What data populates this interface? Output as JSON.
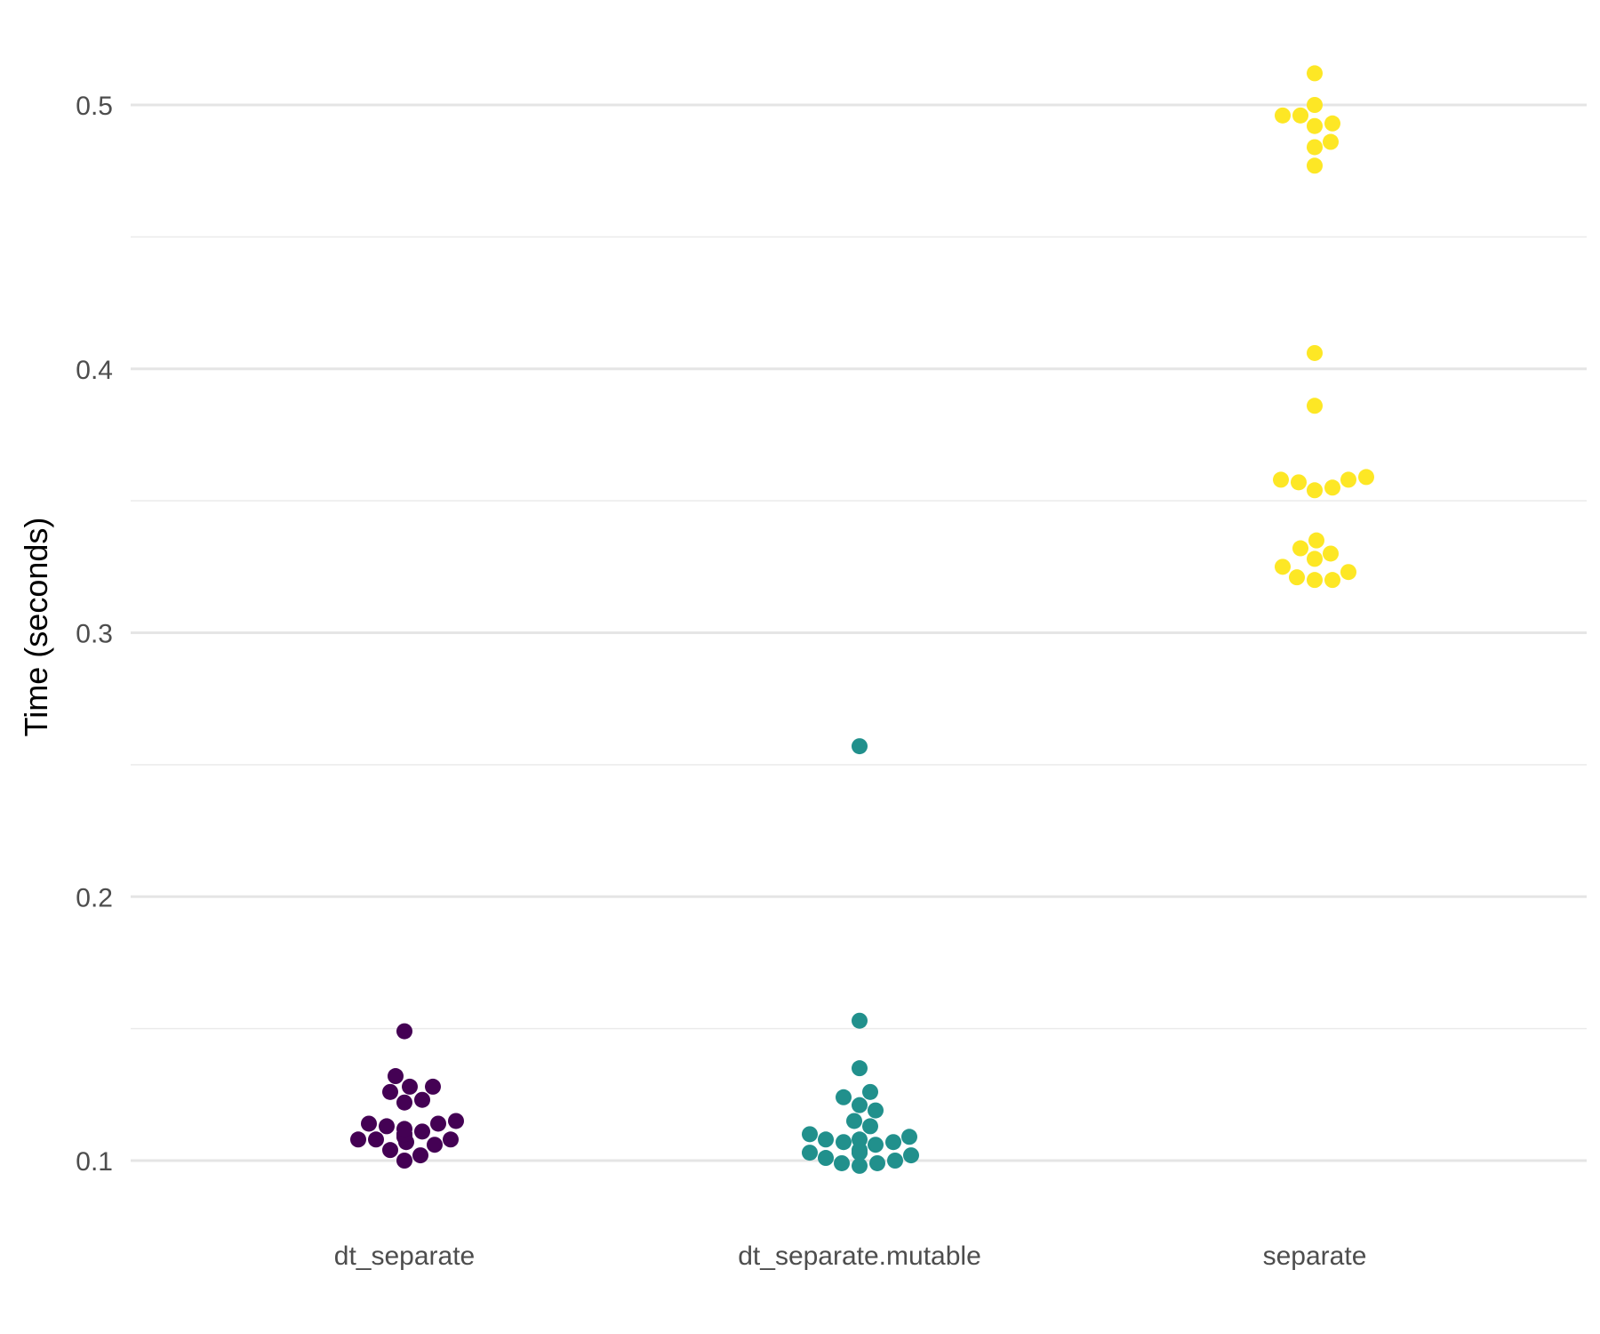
{
  "chart_data": {
    "type": "scatter",
    "title": "",
    "xlabel": "",
    "ylabel": "Time (seconds)",
    "categories": [
      "dt_separate",
      "dt_separate.mutable",
      "separate"
    ],
    "ylim": [
      0.07,
      0.52
    ],
    "yticks": [
      0.1,
      0.2,
      0.3,
      0.4,
      0.5
    ],
    "ytick_labels": [
      "0.1",
      "0.2",
      "0.3",
      "0.4",
      "0.5"
    ],
    "yminor": [
      0.15,
      0.25,
      0.35,
      0.45
    ],
    "grid": true,
    "legend": "none",
    "series": [
      {
        "category": "dt_separate",
        "color": "#440154",
        "values": [
          0.149,
          0.132,
          0.128,
          0.128,
          0.126,
          0.123,
          0.122,
          0.115,
          0.114,
          0.114,
          0.113,
          0.112,
          0.111,
          0.11,
          0.11,
          0.109,
          0.109,
          0.108,
          0.108,
          0.108,
          0.107,
          0.106,
          0.104,
          0.102,
          0.1
        ]
      },
      {
        "category": "dt_separate.mutable",
        "color": "#21908C",
        "values": [
          0.257,
          0.153,
          0.135,
          0.126,
          0.124,
          0.121,
          0.119,
          0.115,
          0.113,
          0.11,
          0.109,
          0.108,
          0.108,
          0.107,
          0.107,
          0.106,
          0.104,
          0.103,
          0.103,
          0.103,
          0.102,
          0.101,
          0.1,
          0.099,
          0.099,
          0.098
        ]
      },
      {
        "category": "separate",
        "color": "#FDE725",
        "values": [
          0.512,
          0.5,
          0.496,
          0.496,
          0.493,
          0.492,
          0.486,
          0.484,
          0.477,
          0.406,
          0.386,
          0.359,
          0.358,
          0.358,
          0.357,
          0.355,
          0.354,
          0.335,
          0.332,
          0.33,
          0.328,
          0.325,
          0.323,
          0.321,
          0.32,
          0.32
        ]
      }
    ]
  }
}
